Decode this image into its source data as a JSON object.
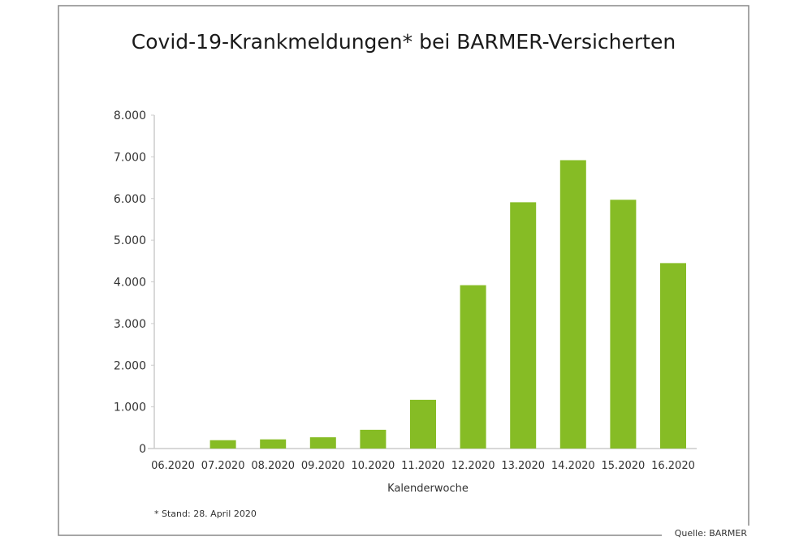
{
  "chart_data": {
    "type": "bar",
    "title": "Covid-19-Krankmeldungen* bei BARMER-Versicherten",
    "xlabel": "Kalenderwoche",
    "ylabel": "",
    "categories": [
      "06.2020",
      "07.2020",
      "08.2020",
      "09.2020",
      "10.2020",
      "11.2020",
      "12.2020",
      "13.2020",
      "14.2020",
      "15.2020",
      "16.2020"
    ],
    "values": [
      0,
      200,
      220,
      270,
      450,
      1170,
      3920,
      5910,
      6920,
      5970,
      4450
    ],
    "ylim": [
      0,
      8000
    ],
    "yticks": [
      0,
      1000,
      2000,
      3000,
      4000,
      5000,
      6000,
      7000,
      8000
    ],
    "ytick_labels": [
      "0",
      "1.000",
      "2.000",
      "3.000",
      "4.000",
      "5.000",
      "6.000",
      "7.000",
      "8.000"
    ],
    "grid": false,
    "bar_color": "#86bc25",
    "footnote": "* Stand: 28. April 2020",
    "source": "Quelle: BARMER"
  }
}
